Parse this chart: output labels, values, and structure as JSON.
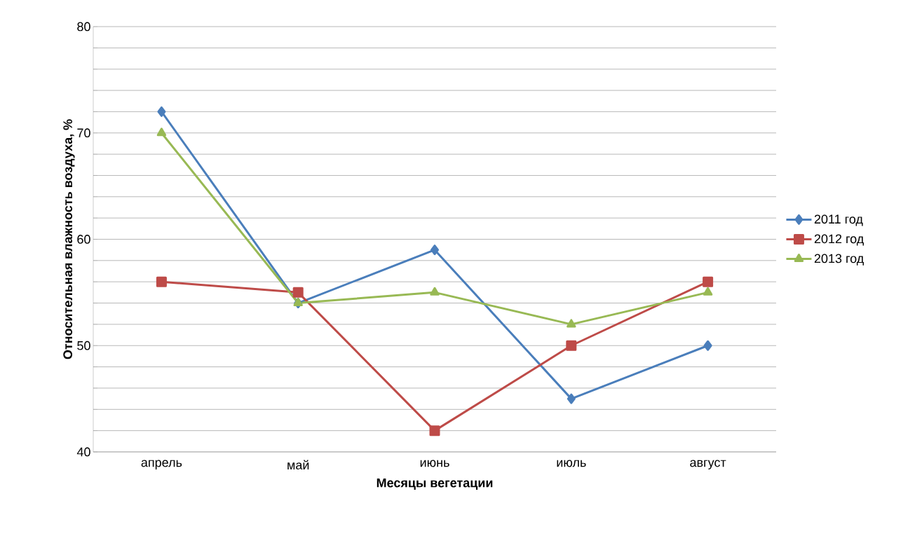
{
  "chart_data": {
    "type": "line",
    "xlabel": "Месяцы вегетации",
    "ylabel": "Относительная влажность воздуха, %",
    "categories": [
      "апрель",
      "май",
      "июнь",
      "июль",
      "август"
    ],
    "series": [
      {
        "name": "2011 год",
        "color": "#4a7ebb",
        "marker": "diamond",
        "values": [
          72,
          54,
          59,
          45,
          50
        ]
      },
      {
        "name": "2012 год",
        "color": "#be4b48",
        "marker": "square",
        "values": [
          56,
          55,
          42,
          50,
          56
        ]
      },
      {
        "name": "2013 год",
        "color": "#98b954",
        "marker": "triangle",
        "values": [
          70,
          54,
          55,
          52,
          55
        ]
      }
    ],
    "ylim": [
      40,
      80
    ],
    "yticks": [
      40,
      {
        "value": 42,
        "label": null
      },
      {
        "value": 44,
        "label": null
      },
      {
        "value": 46,
        "label": null
      },
      {
        "value": 48,
        "label": null
      },
      50,
      {
        "value": 52,
        "label": null
      },
      {
        "value": 54,
        "label": null
      },
      {
        "value": 56,
        "label": null
      },
      {
        "value": 58,
        "label": null
      },
      60,
      {
        "value": 62,
        "label": null
      },
      {
        "value": 64,
        "label": null
      },
      {
        "value": 66,
        "label": null
      },
      {
        "value": 68,
        "label": null
      },
      70,
      {
        "value": 72,
        "label": null
      },
      {
        "value": 74,
        "label": null
      },
      {
        "value": 76,
        "label": null
      },
      {
        "value": 78,
        "label": null
      },
      80
    ],
    "grid": "y",
    "legend": "right",
    "line_style": "solid"
  }
}
